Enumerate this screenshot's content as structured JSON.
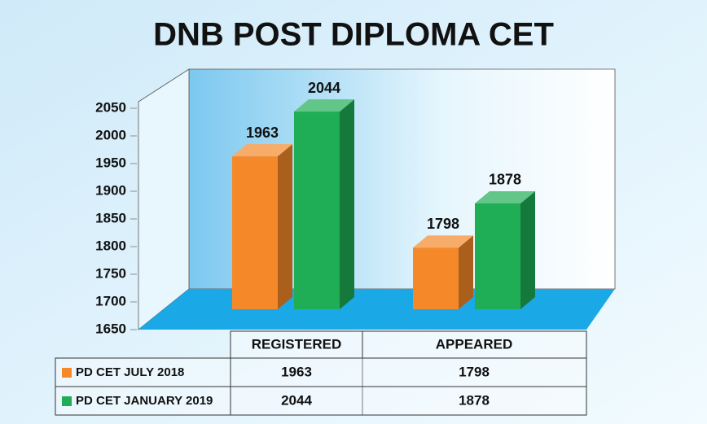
{
  "chart_data": {
    "type": "bar3d",
    "title": "DNB POST DIPLOMA CET",
    "categories": [
      "REGISTERED",
      "APPEARED"
    ],
    "series": [
      {
        "name": "PD CET JULY 2018",
        "color": "#f5892a",
        "values": [
          1963,
          1798
        ]
      },
      {
        "name": "PD CET JANUARY 2019",
        "color": "#1fae55",
        "values": [
          2044,
          1878
        ]
      }
    ],
    "ylim": [
      1650,
      2050
    ],
    "yticks": [
      1650,
      1700,
      1750,
      1800,
      1850,
      1900,
      1950,
      2000,
      2050
    ],
    "data_table": true
  }
}
